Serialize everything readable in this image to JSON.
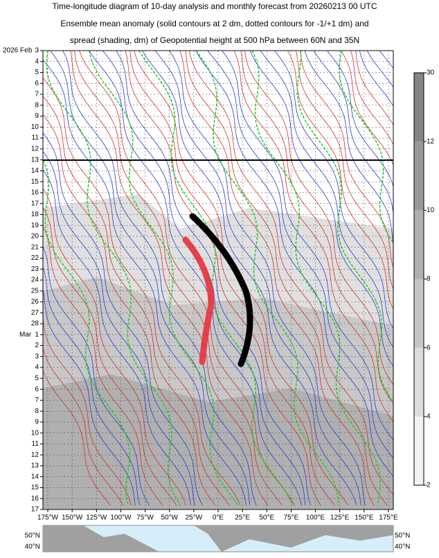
{
  "chart_data": {
    "type": "hovmoller",
    "title": [
      "Time-longitude diagram of 10-day analysis and monthly forecast from 20260213 00 UTC",
      "Ensemble mean anomaly (solid contours at 2 dm, dotted contours for -1/+1 dm) and",
      "spread (shading, dm) of Geopotential height at 500 hPa between 60N and 35N"
    ],
    "xlim": [
      -180,
      180
    ],
    "xticks": [
      {
        "value": -175,
        "label": "175°W"
      },
      {
        "value": -150,
        "label": "150°W"
      },
      {
        "value": -125,
        "label": "125°W"
      },
      {
        "value": -100,
        "label": "100°W"
      },
      {
        "value": -75,
        "label": "75°W"
      },
      {
        "value": -50,
        "label": "50°W"
      },
      {
        "value": -25,
        "label": "25°W"
      },
      {
        "value": 0,
        "label": "0°E"
      },
      {
        "value": 25,
        "label": "25°E"
      },
      {
        "value": 50,
        "label": "50°E"
      },
      {
        "value": 75,
        "label": "75°E"
      },
      {
        "value": 100,
        "label": "100°E"
      },
      {
        "value": 125,
        "label": "125°E"
      },
      {
        "value": 150,
        "label": "150°E"
      },
      {
        "value": 175,
        "label": "175°E"
      }
    ],
    "dates": [
      {
        "month": "2026 Feb",
        "day": "3"
      },
      {
        "day": "4"
      },
      {
        "day": "5"
      },
      {
        "day": "6"
      },
      {
        "day": "7"
      },
      {
        "day": "8",
        "color": "#e00000"
      },
      {
        "day": "9"
      },
      {
        "day": "10"
      },
      {
        "day": "11"
      },
      {
        "day": "12"
      },
      {
        "day": "13"
      },
      {
        "day": "14"
      },
      {
        "day": "15",
        "color": "#e00000"
      },
      {
        "day": "16"
      },
      {
        "day": "17"
      },
      {
        "day": "18"
      },
      {
        "day": "19"
      },
      {
        "day": "20"
      },
      {
        "day": "21"
      },
      {
        "day": "22",
        "color": "#e00000"
      },
      {
        "day": "23"
      },
      {
        "day": "24"
      },
      {
        "day": "25"
      },
      {
        "day": "26"
      },
      {
        "day": "27"
      },
      {
        "day": "28"
      },
      {
        "month": "Mar",
        "day": "1",
        "color": "#e00000"
      },
      {
        "day": "2"
      },
      {
        "day": "3"
      },
      {
        "day": "4"
      },
      {
        "day": "5"
      },
      {
        "day": "6"
      },
      {
        "day": "7"
      },
      {
        "day": "8",
        "color": "#e00000"
      },
      {
        "day": "9"
      },
      {
        "day": "10"
      },
      {
        "day": "11"
      },
      {
        "day": "12"
      },
      {
        "day": "13"
      },
      {
        "day": "14"
      },
      {
        "day": "15",
        "color": "#e00000"
      },
      {
        "day": "16"
      },
      {
        "day": "17"
      }
    ],
    "colorbar": {
      "levels": [
        2,
        4,
        6,
        8,
        10,
        12,
        30
      ],
      "colors": [
        "#f2f2f2",
        "#dcdcdc",
        "#c6c6c6",
        "#b0b0b0",
        "#999999",
        "#858585"
      ]
    },
    "map_labels": [
      "50°N",
      "40°N"
    ]
  }
}
